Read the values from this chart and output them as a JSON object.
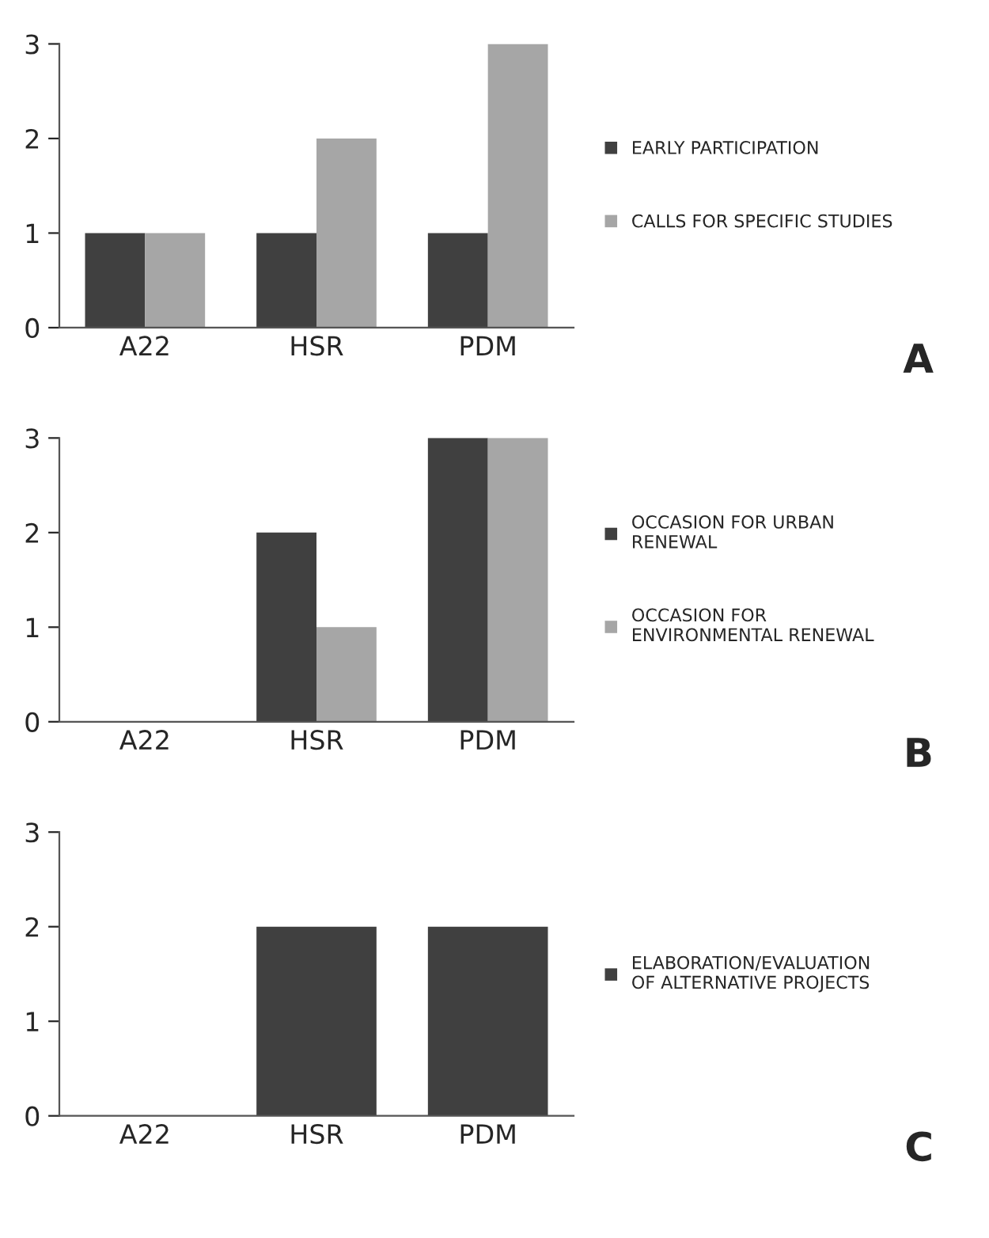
{
  "chart_data": [
    {
      "type": "bar",
      "categories": [
        "A22",
        "HSR",
        "PDM"
      ],
      "ylim": [
        0,
        3
      ],
      "yticks": [
        0,
        1,
        2,
        3
      ],
      "grid": false,
      "legend": "right",
      "annotations": [
        "A"
      ],
      "series": [
        {
          "name": "EARLY PARTICIPATION",
          "color": "#404040",
          "values": [
            1,
            1,
            1
          ]
        },
        {
          "name": "CALLS FOR SPECIFIC STUDIES",
          "color": "#a6a6a6",
          "values": [
            1,
            2,
            3
          ]
        }
      ]
    },
    {
      "type": "bar",
      "categories": [
        "A22",
        "HSR",
        "PDM"
      ],
      "ylim": [
        0,
        3
      ],
      "yticks": [
        0,
        1,
        2,
        3
      ],
      "grid": false,
      "legend": "right",
      "annotations": [
        "B"
      ],
      "series": [
        {
          "name": "OCCASION FOR URBAN\nRENEWAL",
          "color": "#404040",
          "values": [
            0,
            2,
            3
          ]
        },
        {
          "name": "OCCASION FOR\nENVIRONMENTAL RENEWAL",
          "color": "#a6a6a6",
          "values": [
            0,
            1,
            3
          ]
        }
      ]
    },
    {
      "type": "bar",
      "categories": [
        "A22",
        "HSR",
        "PDM"
      ],
      "ylim": [
        0,
        3
      ],
      "yticks": [
        0,
        1,
        2,
        3
      ],
      "grid": false,
      "legend": "right",
      "annotations": [
        "C"
      ],
      "series": [
        {
          "name": "ELABORATION/EVALUATION\nOF ALTERNATIVE PROJECTS",
          "color": "#404040",
          "values": [
            0,
            2,
            2
          ]
        }
      ]
    }
  ]
}
